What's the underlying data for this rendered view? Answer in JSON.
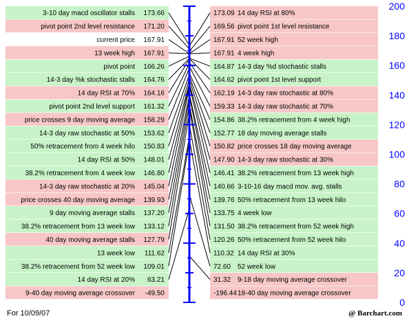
{
  "chart_data": {
    "type": "table",
    "title": "",
    "colors": {
      "pink": "#f7c7c7",
      "green": "#c8f3c8",
      "white": "#ffffff",
      "axis": "#0000ff",
      "line": "#000000"
    },
    "y_axis": {
      "min": 0,
      "max": 200,
      "ticks": [
        "0",
        "20",
        "40",
        "60",
        "80",
        "100",
        "120",
        "140",
        "160",
        "180",
        "200"
      ]
    },
    "left": [
      {
        "label": "3-10 day macd oscillator stalls",
        "value": "173.66",
        "bg": "green"
      },
      {
        "label": "pivot point 2nd level resistance",
        "value": "171.20",
        "bg": "pink"
      },
      {
        "label": "current price",
        "value": "167.91",
        "bg": "white"
      },
      {
        "label": "13 week high",
        "value": "167.91",
        "bg": "pink"
      },
      {
        "label": "pivot point",
        "value": "166.26",
        "bg": "green"
      },
      {
        "label": "14-3 day %k stochastic stalls",
        "value": "164.76",
        "bg": "green"
      },
      {
        "label": "14 day RSI at 70%",
        "value": "164.16",
        "bg": "pink"
      },
      {
        "label": "pivot point 2nd level support",
        "value": "161.32",
        "bg": "green"
      },
      {
        "label": "price crosses 9 day moving average",
        "value": "158.29",
        "bg": "pink"
      },
      {
        "label": "14-3 day raw stochastic at 50%",
        "value": "153.62",
        "bg": "green"
      },
      {
        "label": "50% retracement from 4 week hilo",
        "value": "150.83",
        "bg": "green"
      },
      {
        "label": "14 day RSI at 50%",
        "value": "148.01",
        "bg": "green"
      },
      {
        "label": "38.2% retracement from 4 week low",
        "value": "146.80",
        "bg": "green"
      },
      {
        "label": "14-3 day raw stochastic at 20%",
        "value": "145.04",
        "bg": "pink"
      },
      {
        "label": "price crosses 40 day moving average",
        "value": "139.93",
        "bg": "pink"
      },
      {
        "label": "9 day moving average stalls",
        "value": "137.20",
        "bg": "green"
      },
      {
        "label": "38.2% retracement from 13 week low",
        "value": "133.12",
        "bg": "green"
      },
      {
        "label": "40 day moving average stalls",
        "value": "127.79",
        "bg": "pink"
      },
      {
        "label": "13 week low",
        "value": "111.62",
        "bg": "green"
      },
      {
        "label": "38.2% retracement from 52 week low",
        "value": "109.01",
        "bg": "green"
      },
      {
        "label": "14 day RSI at 20%",
        "value": "63.21",
        "bg": "green"
      },
      {
        "label": "9-40 day moving average crossover",
        "value": "-49.50",
        "bg": "pink"
      }
    ],
    "right": [
      {
        "label": "14 day RSI at 80%",
        "value": "173.09",
        "bg": "pink"
      },
      {
        "label": "pivot point 1st level resistance",
        "value": "169.56",
        "bg": "pink"
      },
      {
        "label": "52 week high",
        "value": "167.91",
        "bg": "pink"
      },
      {
        "label": "4 week high",
        "value": "167.91",
        "bg": "pink"
      },
      {
        "label": "14-3 day %d stochastic stalls",
        "value": "164.87",
        "bg": "green"
      },
      {
        "label": "pivot point 1st level support",
        "value": "164.62",
        "bg": "green"
      },
      {
        "label": "14-3 day raw stochastic at 80%",
        "value": "162.19",
        "bg": "pink"
      },
      {
        "label": "14-3 day raw stochastic at 70%",
        "value": "159.33",
        "bg": "pink"
      },
      {
        "label": "38.2% retracement from 4 week high",
        "value": "154.86",
        "bg": "green"
      },
      {
        "label": "18 day moving average stalls",
        "value": "152.77",
        "bg": "green"
      },
      {
        "label": "price crosses 18 day moving average",
        "value": "150.82",
        "bg": "pink"
      },
      {
        "label": "14-3 day raw stochastic at 30%",
        "value": "147.90",
        "bg": "pink"
      },
      {
        "label": "38.2% retracement from 13 week high",
        "value": "146.41",
        "bg": "green"
      },
      {
        "label": "3-10-16 day macd mov. avg. stalls",
        "value": "140.66",
        "bg": "green"
      },
      {
        "label": "50% retracement from 13 week hilo",
        "value": "139.76",
        "bg": "green"
      },
      {
        "label": "4 week low",
        "value": "133.75",
        "bg": "green"
      },
      {
        "label": "38.2% retracement from 52 week high",
        "value": "131.50",
        "bg": "green"
      },
      {
        "label": "50% retracement from 52 week hilo",
        "value": "120.26",
        "bg": "green"
      },
      {
        "label": "14 day RSI at 30%",
        "value": "110.32",
        "bg": "green"
      },
      {
        "label": "52 week low",
        "value": "72.60",
        "bg": "green"
      },
      {
        "label": "9-18 day moving average crossover",
        "value": "31.32",
        "bg": "pink"
      },
      {
        "label": "18-40 day moving average crossover",
        "value": "-196.44",
        "bg": "pink"
      }
    ]
  },
  "footer": {
    "date": "For 10/09/07",
    "brand": "@ Barchart.com"
  }
}
